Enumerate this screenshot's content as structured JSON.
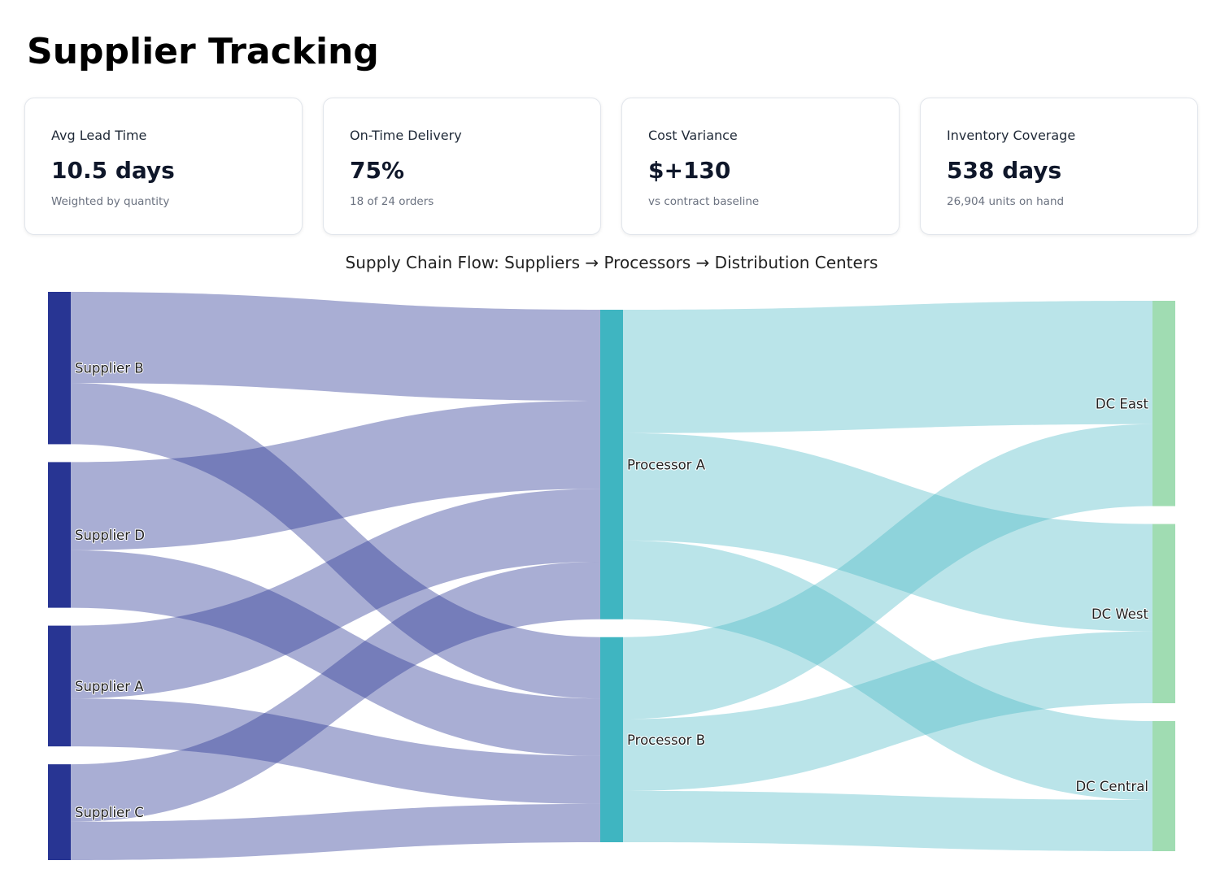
{
  "page": {
    "title": "Supplier Tracking"
  },
  "kpis": [
    {
      "label": "Avg Lead Time",
      "value": "10.5 days",
      "sub": "Weighted by quantity"
    },
    {
      "label": "On-Time Delivery",
      "value": "75%",
      "sub": "18 of 24 orders"
    },
    {
      "label": "Cost Variance",
      "value": "$+130",
      "sub": "vs contract baseline"
    },
    {
      "label": "Inventory Coverage",
      "value": "538 days",
      "sub": "26,904 units on hand"
    }
  ],
  "colors": {
    "supplier_node": "#283593",
    "processor_node": "#3fb5c1",
    "dc_node": "#a0dcb2",
    "supplier_link": "rgba(40,53,147,0.4)",
    "processor_link": "rgba(63,181,193,0.36)"
  },
  "chart_data": {
    "type": "sankey",
    "title": "Supply Chain Flow: Suppliers → Processors → Distribution Centers",
    "nodes": [
      {
        "name": "Supplier B",
        "column": 0
      },
      {
        "name": "Supplier D",
        "column": 0
      },
      {
        "name": "Supplier A",
        "column": 0
      },
      {
        "name": "Supplier C",
        "column": 0
      },
      {
        "name": "Processor A",
        "column": 1
      },
      {
        "name": "Processor B",
        "column": 1
      },
      {
        "name": "DC East",
        "column": 2
      },
      {
        "name": "DC West",
        "column": 2
      },
      {
        "name": "DC Central",
        "column": 2
      }
    ],
    "links": [
      {
        "source": "Supplier B",
        "target": "Processor A",
        "value": 3800
      },
      {
        "source": "Supplier B",
        "target": "Processor B",
        "value": 2560
      },
      {
        "source": "Supplier D",
        "target": "Processor A",
        "value": 3680
      },
      {
        "source": "Supplier D",
        "target": "Processor B",
        "value": 2400
      },
      {
        "source": "Supplier A",
        "target": "Processor A",
        "value": 3040
      },
      {
        "source": "Supplier A",
        "target": "Processor B",
        "value": 2000
      },
      {
        "source": "Supplier C",
        "target": "Processor A",
        "value": 2400
      },
      {
        "source": "Supplier C",
        "target": "Processor B",
        "value": 1600
      },
      {
        "source": "Processor A",
        "target": "DC East",
        "value": 5150
      },
      {
        "source": "Processor A",
        "target": "DC West",
        "value": 4480
      },
      {
        "source": "Processor A",
        "target": "DC Central",
        "value": 3290
      },
      {
        "source": "Processor B",
        "target": "DC East",
        "value": 3420
      },
      {
        "source": "Processor B",
        "target": "DC West",
        "value": 3000
      },
      {
        "source": "Processor B",
        "target": "DC Central",
        "value": 2140
      }
    ]
  }
}
